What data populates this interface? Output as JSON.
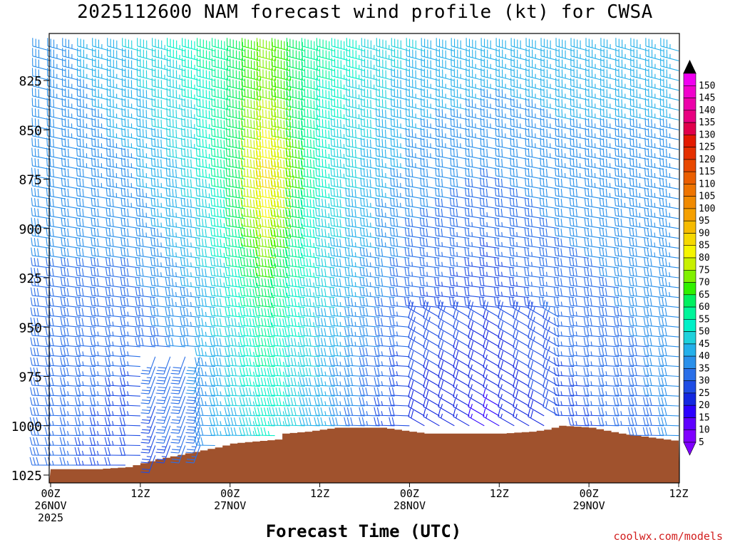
{
  "chart_data": {
    "type": "wind-barb-time-height",
    "title": "2025112600 NAM forecast wind profile (kt) for CWSA",
    "xlabel": "Forecast Time (UTC)",
    "credit": "coolwx.com/models",
    "x_range_hours": [
      0,
      84
    ],
    "x_ticks": [
      {
        "hour": 0,
        "lines": [
          "00Z",
          "26NOV",
          "2025"
        ]
      },
      {
        "hour": 12,
        "lines": [
          "12Z"
        ]
      },
      {
        "hour": 24,
        "lines": [
          "00Z",
          "27NOV"
        ]
      },
      {
        "hour": 36,
        "lines": [
          "12Z"
        ]
      },
      {
        "hour": 48,
        "lines": [
          "00Z",
          "28NOV"
        ]
      },
      {
        "hour": 60,
        "lines": [
          "12Z"
        ]
      },
      {
        "hour": 72,
        "lines": [
          "00Z",
          "29NOV"
        ]
      },
      {
        "hour": 84,
        "lines": [
          "12Z"
        ]
      }
    ],
    "y_label_values": [
      825,
      850,
      875,
      900,
      925,
      950,
      975,
      1000,
      1025
    ],
    "y_range_hpa": [
      1028,
      800
    ],
    "pressure_levels_hpa": [
      1025,
      1020,
      1015,
      1010,
      1005,
      1000,
      995,
      990,
      985,
      980,
      975,
      970,
      965,
      960,
      955,
      950,
      945,
      940,
      935,
      930,
      925,
      920,
      915,
      910,
      905,
      900,
      895,
      890,
      885,
      880,
      875,
      870,
      865,
      860,
      855,
      850,
      845,
      840,
      835,
      830,
      825,
      820,
      815,
      810
    ],
    "time_step_hours": 2,
    "colorbar": {
      "units": "kt",
      "labels": [
        5,
        10,
        15,
        20,
        25,
        30,
        35,
        40,
        45,
        50,
        55,
        60,
        65,
        70,
        75,
        80,
        85,
        90,
        95,
        100,
        105,
        110,
        115,
        120,
        125,
        130,
        135,
        140,
        145,
        150
      ],
      "colors": [
        "#8000ff",
        "#5f00ff",
        "#2c00ff",
        "#1428e0",
        "#1f4de4",
        "#2a6fe8",
        "#2a90ea",
        "#24b0ea",
        "#1ed1dc",
        "#00f0c8",
        "#00f59a",
        "#00f060",
        "#30f000",
        "#80f000",
        "#c8f000",
        "#f5f500",
        "#f5d800",
        "#f5bb00",
        "#f5a000",
        "#f08a00",
        "#ee7400",
        "#ea5e00",
        "#e84800",
        "#e53000",
        "#e31a00",
        "#e0004b",
        "#e80080",
        "#ec00aa",
        "#f000cc",
        "#f000f0"
      ]
    },
    "surface_pressure_hpa": [
      {
        "hour": 0,
        "p": 1022
      },
      {
        "hour": 6,
        "p": 1022
      },
      {
        "hour": 10,
        "p": 1021
      },
      {
        "hour": 14,
        "p": 1017
      },
      {
        "hour": 18,
        "p": 1014
      },
      {
        "hour": 22,
        "p": 1011
      },
      {
        "hour": 24,
        "p": 1009
      },
      {
        "hour": 30,
        "p": 1007
      },
      {
        "hour": 31,
        "p": 1004
      },
      {
        "hour": 34,
        "p": 1003
      },
      {
        "hour": 38,
        "p": 1001
      },
      {
        "hour": 44,
        "p": 1001
      },
      {
        "hour": 46,
        "p": 1002
      },
      {
        "hour": 50,
        "p": 1004
      },
      {
        "hour": 54,
        "p": 1004
      },
      {
        "hour": 60,
        "p": 1004
      },
      {
        "hour": 64,
        "p": 1003
      },
      {
        "hour": 66,
        "p": 1002
      },
      {
        "hour": 68,
        "p": 1000
      },
      {
        "hour": 72,
        "p": 1001
      },
      {
        "hour": 76,
        "p": 1004
      },
      {
        "hour": 80,
        "p": 1006
      },
      {
        "hour": 82,
        "p": 1007
      },
      {
        "hour": 84,
        "p": 1008
      }
    ],
    "surface_color": "#a0522d",
    "wind_field_estimate": {
      "direction_deg_upper": 285,
      "direction_deg_lower": 270,
      "speed_kt_by_hour": [
        {
          "hour": 0,
          "low": 28,
          "high": 32
        },
        {
          "hour": 12,
          "low": 20,
          "high": 40
        },
        {
          "hour": 20,
          "low": 25,
          "high": 48
        },
        {
          "hour": 30,
          "low": 45,
          "high": 65
        },
        {
          "hour": 40,
          "low": 30,
          "high": 48
        },
        {
          "hour": 50,
          "low": 15,
          "high": 40
        },
        {
          "hour": 60,
          "low": 10,
          "high": 38
        },
        {
          "hour": 70,
          "low": 20,
          "high": 38
        },
        {
          "hour": 84,
          "low": 30,
          "high": 36
        }
      ]
    }
  }
}
